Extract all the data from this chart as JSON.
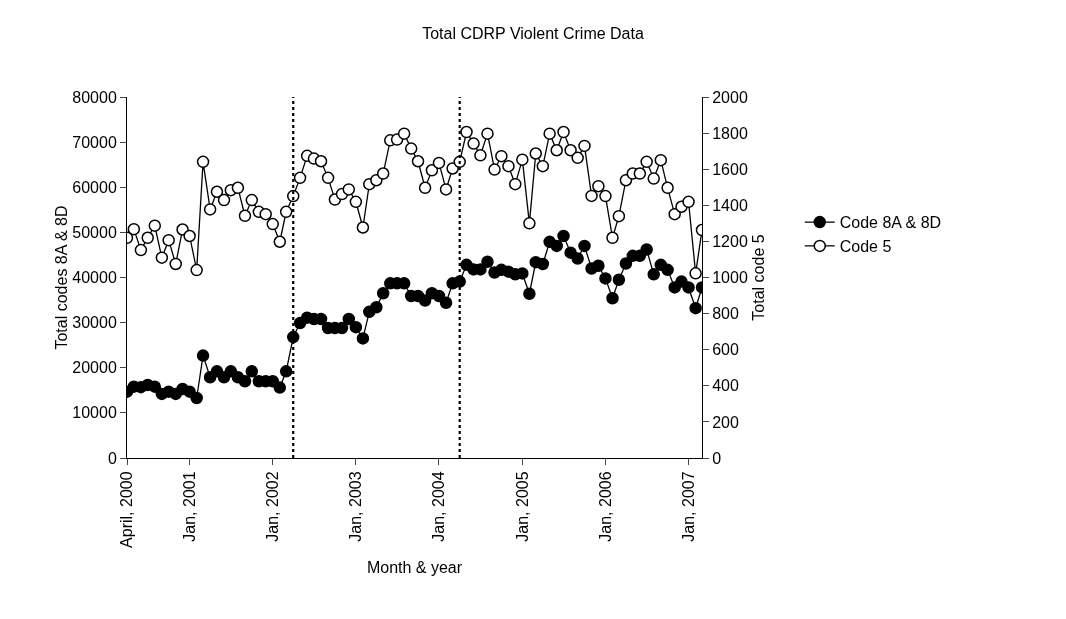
{
  "chart_data": {
    "type": "line",
    "title": "Total CDRP Violent Crime Data",
    "xlabel": "Month & year",
    "ylabel": "Total codes 8A & 8D",
    "y2label": "Total code 5",
    "x": [
      "2000-04",
      "2000-05",
      "2000-06",
      "2000-07",
      "2000-08",
      "2000-09",
      "2000-10",
      "2000-11",
      "2000-12",
      "2001-01",
      "2001-02",
      "2001-03",
      "2001-04",
      "2001-05",
      "2001-06",
      "2001-07",
      "2001-08",
      "2001-09",
      "2001-10",
      "2001-11",
      "2001-12",
      "2002-01",
      "2002-02",
      "2002-03",
      "2002-04",
      "2002-05",
      "2002-06",
      "2002-07",
      "2002-08",
      "2002-09",
      "2002-10",
      "2002-11",
      "2002-12",
      "2003-01",
      "2003-02",
      "2003-03",
      "2003-04",
      "2003-05",
      "2003-06",
      "2003-07",
      "2003-08",
      "2003-09",
      "2003-10",
      "2003-11",
      "2003-12",
      "2004-01",
      "2004-02",
      "2004-03",
      "2004-04",
      "2004-05",
      "2004-06",
      "2004-07",
      "2004-08",
      "2004-09",
      "2004-10",
      "2004-11",
      "2004-12",
      "2005-01",
      "2005-02",
      "2005-03",
      "2005-04",
      "2005-05",
      "2005-06",
      "2005-07",
      "2005-08",
      "2005-09",
      "2005-10",
      "2005-11",
      "2005-12",
      "2006-01",
      "2006-02",
      "2006-03",
      "2006-04",
      "2006-05",
      "2006-06",
      "2006-07",
      "2006-08",
      "2006-09",
      "2006-10",
      "2006-11",
      "2006-12",
      "2007-01",
      "2007-02",
      "2007-03"
    ],
    "series": [
      {
        "name": "Code 8A & 8D",
        "color": "#000000",
        "values": [
          14700,
          15800,
          15700,
          16200,
          15800,
          14200,
          14700,
          14200,
          15300,
          14700,
          13300,
          22700,
          17900,
          19200,
          17900,
          19200,
          17900,
          17000,
          19200,
          17000,
          17000,
          17000,
          15600,
          19200,
          26800,
          29900,
          31100,
          30800,
          30800,
          28800,
          28800,
          28800,
          30800,
          29000,
          26500,
          32400,
          33400,
          36500,
          38700,
          38700,
          38700,
          35900,
          35900,
          34900,
          36500,
          35900,
          34400,
          38700,
          39100,
          42800,
          41800,
          41800,
          43500,
          41100,
          41700,
          41300,
          40700,
          40900,
          36400,
          43400,
          43000,
          47900,
          47000,
          49200,
          45500,
          44200,
          47000,
          42000,
          42600,
          39800,
          35400,
          39500,
          43100,
          44800,
          44800,
          46200,
          40700,
          42800,
          41700,
          37800,
          39100,
          37800,
          33200,
          37800
        ]
      },
      {
        "name": "Code 5",
        "color": "#000000",
        "axis": "y2",
        "values": [
          1220,
          1268,
          1152,
          1220,
          1287,
          1110,
          1207,
          1075,
          1266,
          1230,
          1041,
          1641,
          1377,
          1475,
          1429,
          1484,
          1497,
          1342,
          1429,
          1364,
          1351,
          1296,
          1198,
          1364,
          1451,
          1552,
          1674,
          1659,
          1644,
          1552,
          1432,
          1462,
          1488,
          1419,
          1277,
          1517,
          1539,
          1576,
          1760,
          1764,
          1797,
          1714,
          1644,
          1497,
          1594,
          1635,
          1488,
          1604,
          1641,
          1806,
          1742,
          1677,
          1797,
          1598,
          1672,
          1617,
          1517,
          1653,
          1300,
          1687,
          1617,
          1797,
          1705,
          1806,
          1705,
          1663,
          1729,
          1452,
          1506,
          1451,
          1220,
          1340,
          1539,
          1576,
          1576,
          1641,
          1548,
          1650,
          1497,
          1351,
          1392,
          1419,
          1023,
          1263
        ]
      }
    ],
    "xlim": [
      "2000-04",
      "2007-03"
    ],
    "xticks": [
      {
        "value": "2000-04",
        "label": "April, 2000"
      },
      {
        "value": "2001-01",
        "label": "Jan, 2001"
      },
      {
        "value": "2002-01",
        "label": "Jan, 2002"
      },
      {
        "value": "2003-01",
        "label": "Jan, 2003"
      },
      {
        "value": "2004-01",
        "label": "Jan, 2004"
      },
      {
        "value": "2005-01",
        "label": "Jan, 2005"
      },
      {
        "value": "2006-01",
        "label": "Jan, 2006"
      },
      {
        "value": "2007-01",
        "label": "Jan, 2007"
      }
    ],
    "ylim": [
      0,
      80000
    ],
    "yticks": [
      0,
      10000,
      20000,
      30000,
      40000,
      50000,
      60000,
      70000,
      80000
    ],
    "y2lim": [
      0,
      2000
    ],
    "y2ticks": [
      0,
      200,
      400,
      600,
      800,
      1000,
      1200,
      1400,
      1600,
      1800,
      2000
    ],
    "ref_lines": [
      {
        "axis": "x",
        "value": "2002-04",
        "color": "#000000",
        "line_style": "dotted"
      },
      {
        "axis": "x",
        "value": "2004-04",
        "color": "#000000",
        "line_style": "dotted"
      }
    ],
    "grid": false,
    "legend": "right",
    "marker": "circle",
    "line_style": "solid"
  }
}
